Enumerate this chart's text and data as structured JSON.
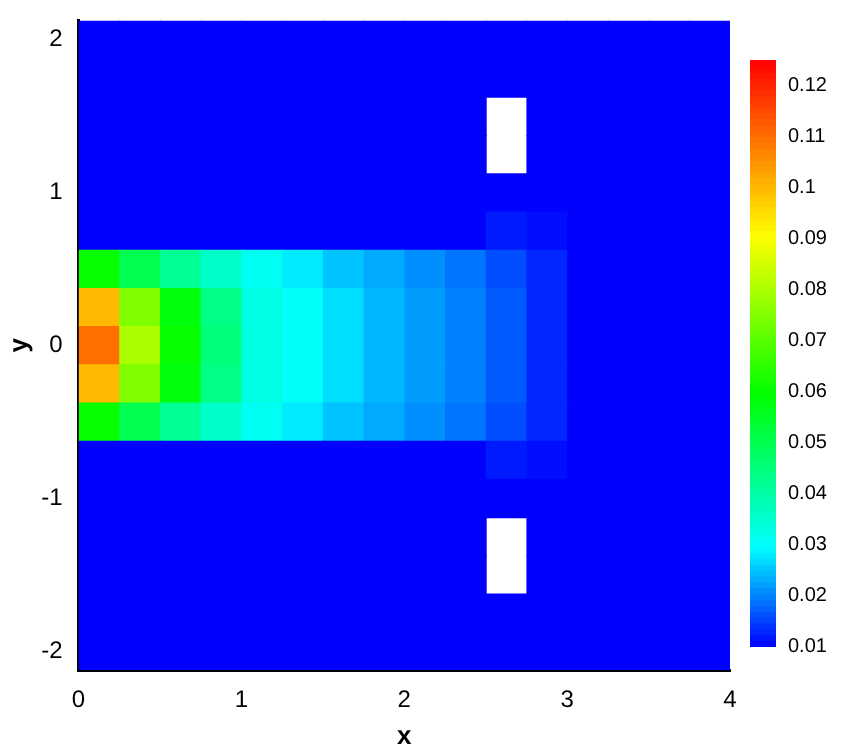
{
  "chart_data": {
    "type": "heatmap",
    "xlabel": "x",
    "ylabel": "y",
    "x": [
      0.125,
      0.375,
      0.625,
      0.875,
      1.125,
      1.375,
      1.625,
      1.875,
      2.125,
      2.375,
      2.625,
      2.875,
      3.125,
      3.375,
      3.625,
      3.875
    ],
    "y_categories": [
      "2",
      null,
      null,
      null,
      "1",
      null,
      null,
      null,
      "0",
      null,
      null,
      null,
      "-1",
      null,
      null,
      null,
      "-2"
    ],
    "xlim": [
      0,
      4
    ],
    "xticks": [
      0,
      1,
      2,
      3,
      4
    ],
    "clim": [
      0.01,
      0.125
    ],
    "cticks": [
      0.01,
      0.02,
      0.03,
      0.04,
      0.05,
      0.06,
      0.07,
      0.08,
      0.09,
      0.1,
      0.11,
      0.12
    ],
    "cells": [
      [
        0.01,
        0.01,
        0.01,
        0.01,
        0.01,
        0.01,
        0.01,
        0.01,
        0.01,
        0.01,
        0.01,
        0.01,
        0.01,
        0.01,
        0.01,
        0.01
      ],
      [
        0.01,
        0.01,
        0.01,
        0.01,
        0.01,
        0.01,
        0.01,
        0.01,
        0.01,
        0.01,
        0.01,
        0.01,
        0.01,
        0.01,
        0.01,
        0.01
      ],
      [
        0.01,
        0.01,
        0.01,
        0.01,
        0.01,
        0.01,
        0.01,
        0.01,
        0.01,
        0.01,
        null,
        0.01,
        0.01,
        0.01,
        0.01,
        0.01
      ],
      [
        0.01,
        0.01,
        0.01,
        0.01,
        0.01,
        0.01,
        0.01,
        0.01,
        0.01,
        0.01,
        null,
        0.01,
        0.01,
        0.01,
        0.01,
        0.01
      ],
      [
        0.01,
        0.01,
        0.01,
        0.01,
        0.01,
        0.01,
        0.01,
        0.01,
        0.01,
        0.01,
        0.01,
        0.01,
        0.01,
        0.01,
        0.01,
        0.01
      ],
      [
        0.01,
        0.01,
        0.01,
        0.01,
        0.01,
        0.01,
        0.01,
        0.01,
        0.01,
        0.01,
        0.012,
        0.011,
        0.01,
        0.01,
        0.01,
        0.01
      ],
      [
        0.06,
        0.05,
        0.042,
        0.036,
        0.031,
        0.028,
        0.025,
        0.023,
        0.021,
        0.019,
        0.016,
        0.013,
        0.01,
        0.01,
        0.01,
        0.01
      ],
      [
        0.1,
        0.075,
        0.058,
        0.044,
        0.033,
        0.03,
        0.027,
        0.024,
        0.022,
        0.02,
        0.017,
        0.013,
        0.01,
        0.01,
        0.01,
        0.01
      ],
      [
        0.11,
        0.08,
        0.06,
        0.045,
        0.033,
        0.03,
        0.027,
        0.024,
        0.022,
        0.02,
        0.017,
        0.013,
        0.01,
        0.01,
        0.01,
        0.01
      ],
      [
        0.1,
        0.075,
        0.058,
        0.044,
        0.033,
        0.03,
        0.027,
        0.024,
        0.022,
        0.02,
        0.017,
        0.013,
        0.01,
        0.01,
        0.01,
        0.01
      ],
      [
        0.06,
        0.05,
        0.042,
        0.036,
        0.031,
        0.028,
        0.025,
        0.023,
        0.021,
        0.019,
        0.016,
        0.013,
        0.01,
        0.01,
        0.01,
        0.01
      ],
      [
        0.01,
        0.01,
        0.01,
        0.01,
        0.01,
        0.01,
        0.01,
        0.01,
        0.01,
        0.01,
        0.012,
        0.011,
        0.01,
        0.01,
        0.01,
        0.01
      ],
      [
        0.01,
        0.01,
        0.01,
        0.01,
        0.01,
        0.01,
        0.01,
        0.01,
        0.01,
        0.01,
        0.01,
        0.01,
        0.01,
        0.01,
        0.01,
        0.01
      ],
      [
        0.01,
        0.01,
        0.01,
        0.01,
        0.01,
        0.01,
        0.01,
        0.01,
        0.01,
        0.01,
        null,
        0.01,
        0.01,
        0.01,
        0.01,
        0.01
      ],
      [
        0.01,
        0.01,
        0.01,
        0.01,
        0.01,
        0.01,
        0.01,
        0.01,
        0.01,
        0.01,
        null,
        0.01,
        0.01,
        0.01,
        0.01,
        0.01
      ],
      [
        0.01,
        0.01,
        0.01,
        0.01,
        0.01,
        0.01,
        0.01,
        0.01,
        0.01,
        0.01,
        0.01,
        0.01,
        0.01,
        0.01,
        0.01,
        0.01
      ],
      [
        0.01,
        0.01,
        0.01,
        0.01,
        0.01,
        0.01,
        0.01,
        0.01,
        0.01,
        0.01,
        0.01,
        0.01,
        0.01,
        0.01,
        0.01,
        0.01
      ]
    ]
  }
}
